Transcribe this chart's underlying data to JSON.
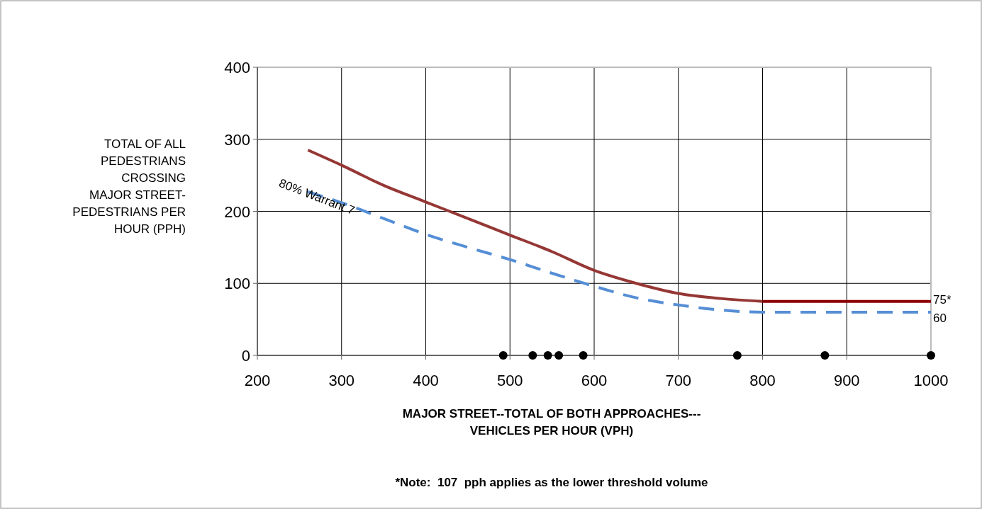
{
  "chart_data": {
    "type": "line",
    "xlabel": "MAJOR STREET--TOTAL OF BOTH APPROACHES---\nVEHICLES PER HOUR (VPH)",
    "ylabel": "TOTAL OF ALL\nPEDESTRIANS\nCROSSING\nMAJOR STREET-\nPEDESTRIANS PER\nHOUR (PPH)",
    "xlim": [
      200,
      1000
    ],
    "xticks": [
      200,
      300,
      400,
      500,
      600,
      700,
      800,
      900,
      1000
    ],
    "ylim": [
      0,
      400
    ],
    "yticks": [
      0,
      100,
      200,
      300,
      400
    ],
    "grid": true,
    "series": [
      {
        "color": "#953735",
        "line_style": "solid",
        "x": [
          260,
          300,
          350,
          400,
          450,
          500,
          550,
          600,
          650,
          700,
          750,
          800
        ],
        "values": [
          285,
          264,
          236,
          213,
          190,
          167,
          144,
          118,
          100,
          86,
          79,
          75
        ]
      },
      {
        "type": "line",
        "color": "#8b0000",
        "line_style": "solid",
        "x": [
          800,
          1000
        ],
        "values": [
          75,
          75
        ]
      },
      {
        "type": "line",
        "color": "#558ed5",
        "line_style": "dashed",
        "x": [
          260,
          300,
          350,
          400,
          450,
          500,
          550,
          600,
          650,
          700,
          750,
          800,
          1000
        ],
        "values": [
          227,
          212,
          190,
          168,
          150,
          133,
          114,
          96,
          80,
          70,
          63,
          60,
          60
        ]
      },
      {
        "type": "scatter",
        "color": "#000000",
        "marker": "circle",
        "x": [
          492,
          527,
          545,
          558,
          587,
          770,
          874,
          1000
        ],
        "values": [
          0,
          0,
          0,
          0,
          0,
          0,
          0,
          0
        ]
      }
    ],
    "annotations": [
      "80% Warrant 7",
      "75*",
      "60",
      "*Note:  107  pph applies as the lower threshold volume"
    ]
  }
}
